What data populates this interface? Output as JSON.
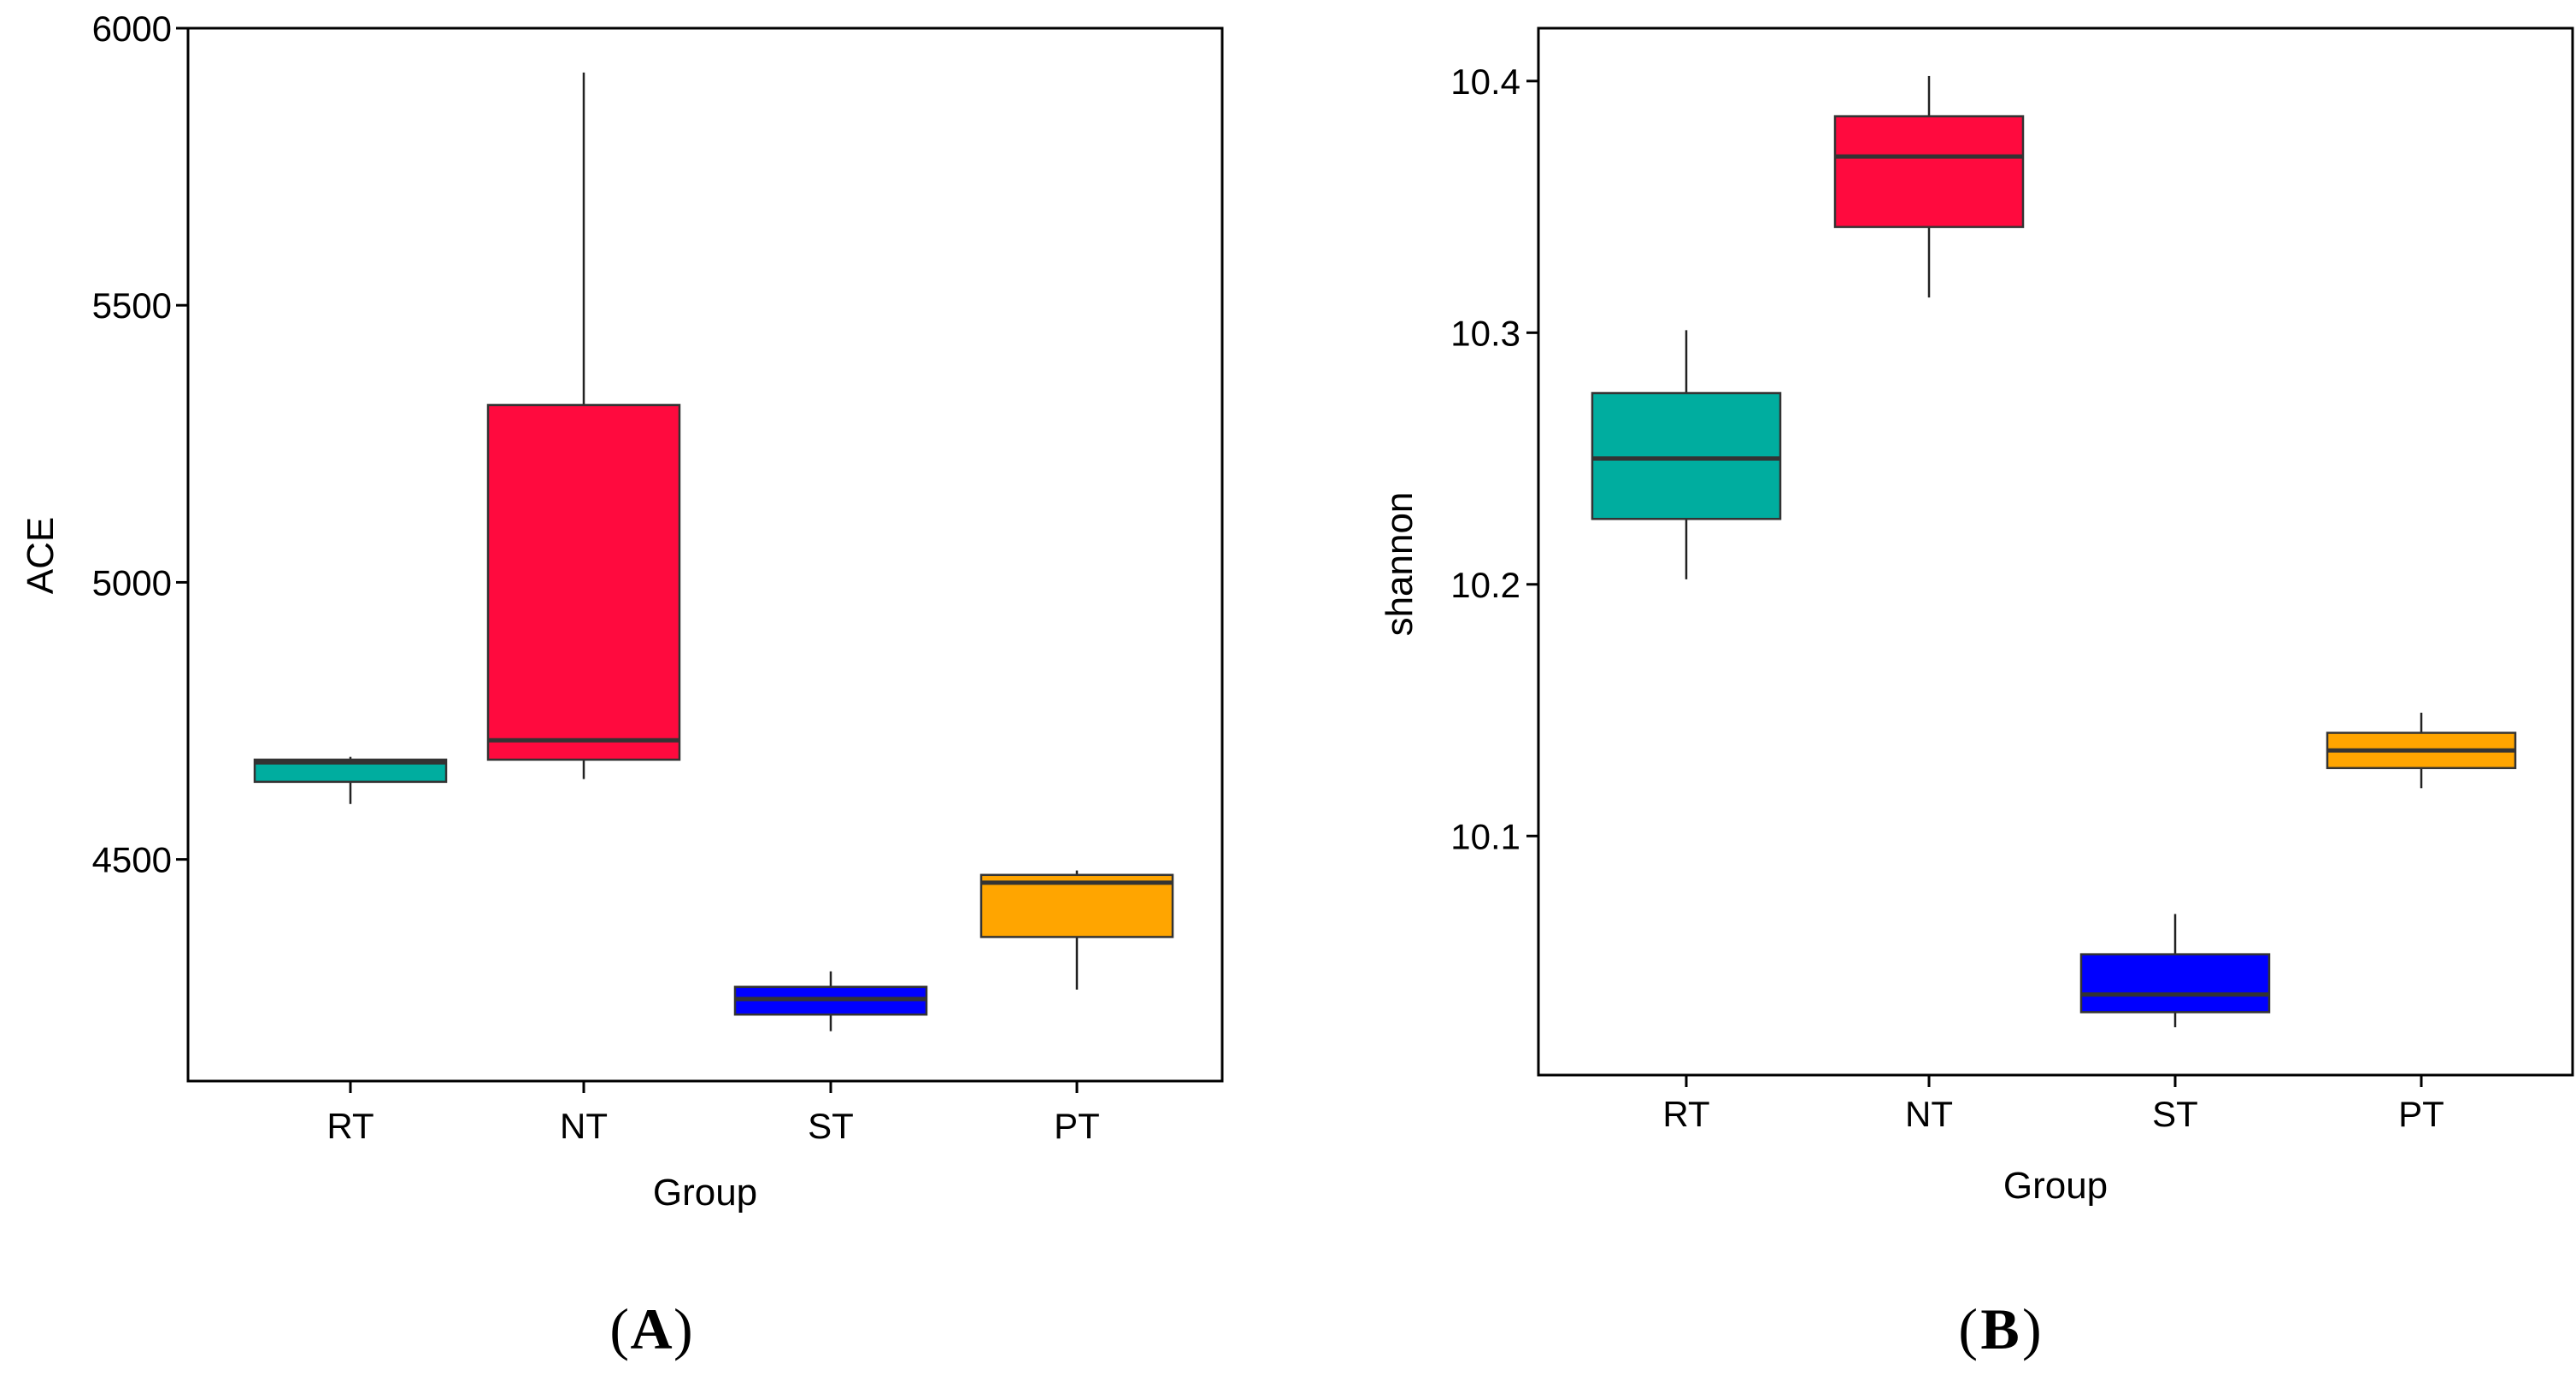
{
  "colors": {
    "RT": "#00AD9F",
    "NT": "#FF0A3E",
    "ST": "#0000FF",
    "PT": "#FFA500",
    "axis": "#000000"
  },
  "chart_data": [
    {
      "type": "box",
      "panel_label": "A",
      "xlabel": "Group",
      "ylabel": "ACE",
      "ylim": [
        4100,
        6000
      ],
      "yticks": [
        4500,
        5000,
        5500,
        6000
      ],
      "ytick_labels": [
        "4500",
        "5000",
        "5500",
        "6000"
      ],
      "categories": [
        "RT",
        "NT",
        "ST",
        "PT"
      ],
      "boxes": [
        {
          "group": "RT",
          "min": 4600,
          "q1": 4640,
          "median": 4675,
          "q3": 4680,
          "max": 4685
        },
        {
          "group": "NT",
          "min": 4645,
          "q1": 4680,
          "median": 4715,
          "q3": 5320,
          "max": 5920
        },
        {
          "group": "ST",
          "min": 4190,
          "q1": 4220,
          "median": 4248,
          "q3": 4270,
          "max": 4298
        },
        {
          "group": "PT",
          "min": 4265,
          "q1": 4360,
          "median": 4458,
          "q3": 4472,
          "max": 4480
        }
      ]
    },
    {
      "type": "box",
      "panel_label": "B",
      "xlabel": "Group",
      "ylabel": "shannon",
      "ylim": [
        10.005,
        10.421
      ],
      "yticks": [
        10.1,
        10.2,
        10.3,
        10.4
      ],
      "ytick_labels": [
        "10.1",
        "10.2",
        "10.3",
        "10.4"
      ],
      "categories": [
        "RT",
        "NT",
        "ST",
        "PT"
      ],
      "boxes": [
        {
          "group": "RT",
          "min": 10.202,
          "q1": 10.226,
          "median": 10.25,
          "q3": 10.276,
          "max": 10.301
        },
        {
          "group": "NT",
          "min": 10.314,
          "q1": 10.342,
          "median": 10.37,
          "q3": 10.386,
          "max": 10.402
        },
        {
          "group": "ST",
          "min": 10.024,
          "q1": 10.03,
          "median": 10.037,
          "q3": 10.053,
          "max": 10.069
        },
        {
          "group": "PT",
          "min": 10.119,
          "q1": 10.127,
          "median": 10.134,
          "q3": 10.141,
          "max": 10.149
        }
      ]
    }
  ]
}
